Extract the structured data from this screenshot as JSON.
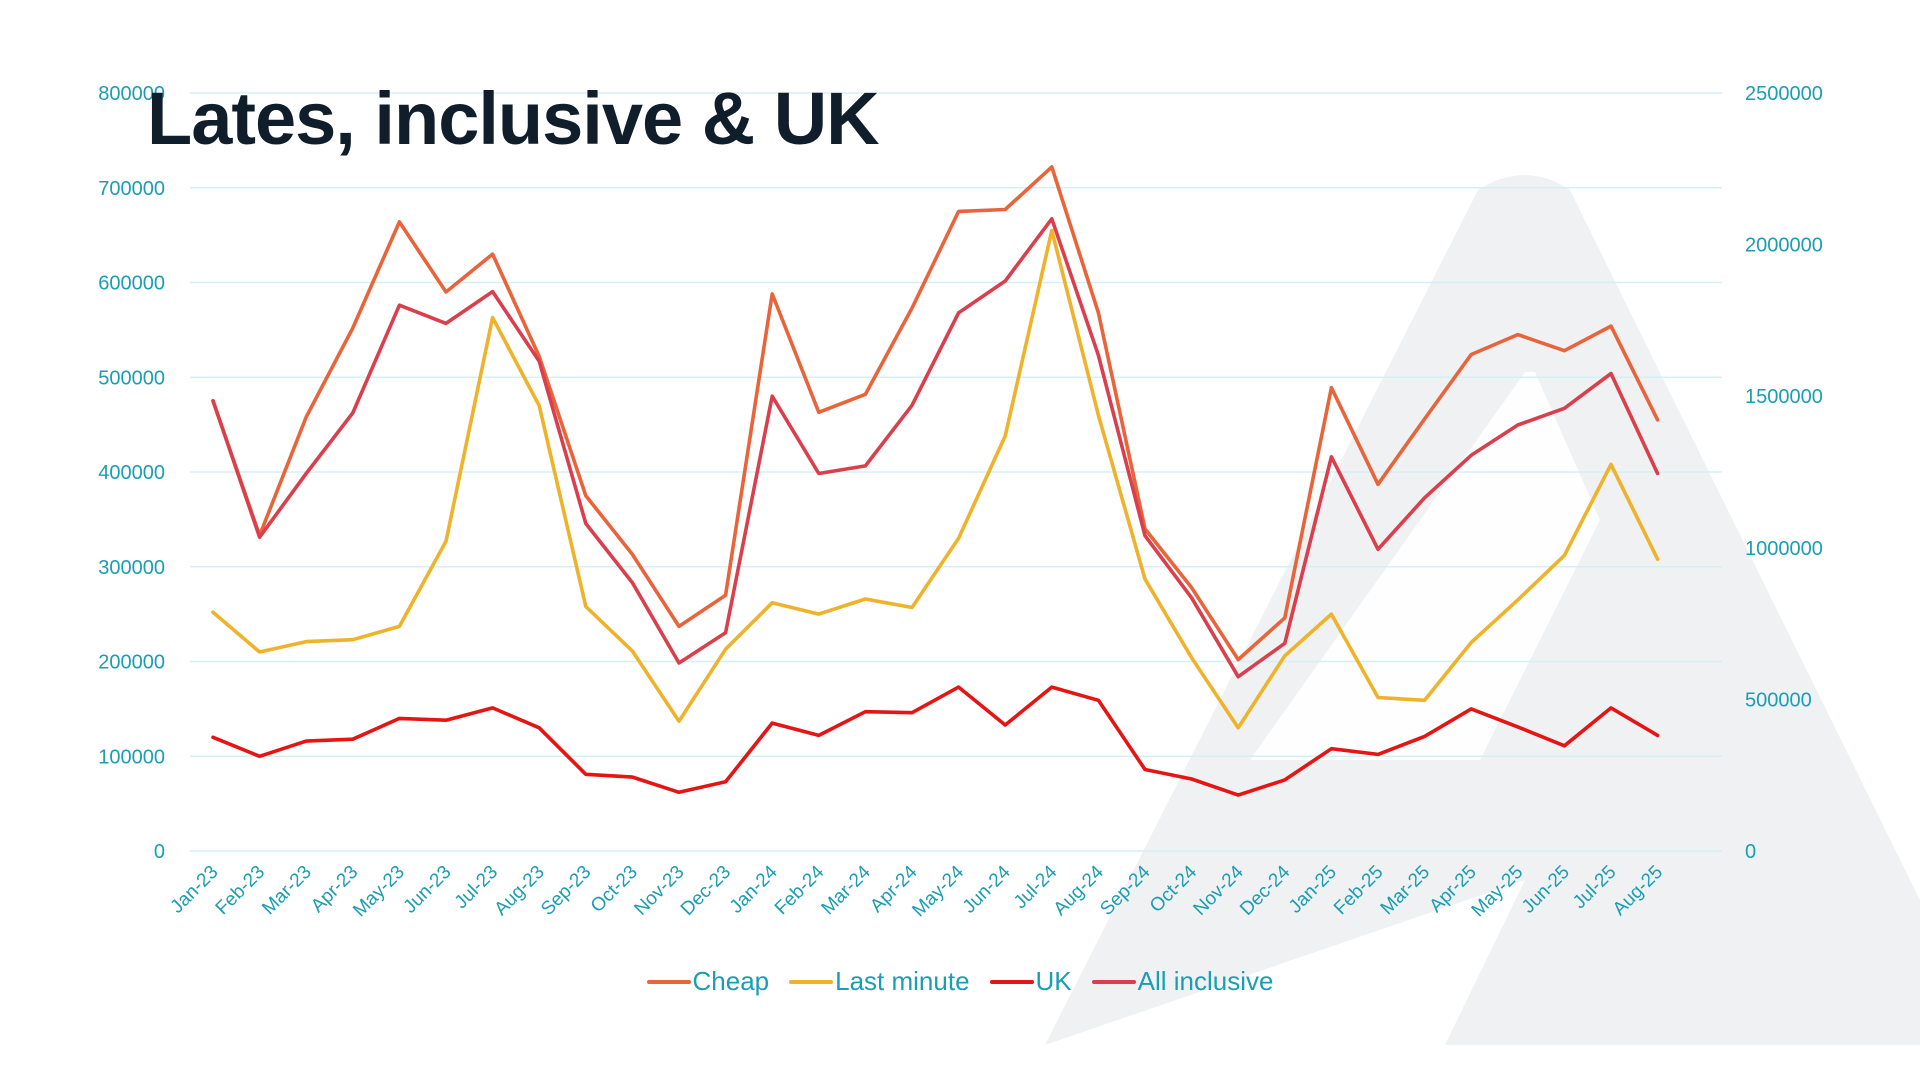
{
  "slide": {
    "title": "Lates, inclusive & UK"
  },
  "colors": {
    "axis_text": "#1b9db3",
    "title": "#0f1e2a",
    "grid": "#d3f0f5",
    "watermark": "#f0f1f2"
  },
  "chart_data": {
    "type": "line",
    "title": "Lates, inclusive & UK",
    "xlabel": "",
    "ylabel": "",
    "grid": true,
    "legend_position": "bottom",
    "categories": [
      "Jan-23",
      "Feb-23",
      "Mar-23",
      "Apr-23",
      "May-23",
      "Jun-23",
      "Jul-23",
      "Aug-23",
      "Sep-23",
      "Oct-23",
      "Nov-23",
      "Dec-23",
      "Jan-24",
      "Feb-24",
      "Mar-24",
      "Apr-24",
      "May-24",
      "Jun-24",
      "Jul-24",
      "Aug-24",
      "Sep-24",
      "Oct-24",
      "Nov-24",
      "Dec-24",
      "Jan-25",
      "Feb-25",
      "Mar-25",
      "Apr-25",
      "May-25",
      "Jun-25",
      "Jul-25",
      "Aug-25"
    ],
    "y_left": {
      "min": 0,
      "max": 800000,
      "ticks": [
        "0",
        "100000",
        "200000",
        "300000",
        "400000",
        "500000",
        "600000",
        "700000",
        "800000"
      ]
    },
    "y_right": {
      "min": 0,
      "max": 2500000,
      "ticks": [
        "0",
        "500000",
        "1000000",
        "1500000",
        "2000000",
        "2500000"
      ]
    },
    "series": [
      {
        "name": "Cheap",
        "color": "#e8643a",
        "axis": "left",
        "values": [
          475000,
          333000,
          458000,
          552000,
          664000,
          590000,
          630000,
          522000,
          375000,
          313000,
          237000,
          270000,
          588000,
          463000,
          482000,
          573000,
          675000,
          677000,
          722000,
          568000,
          340000,
          278000,
          202000,
          246000,
          489000,
          387000,
          456000,
          524000,
          545000,
          528000,
          554000,
          455000
        ]
      },
      {
        "name": "Last minute",
        "color": "#efb22b",
        "axis": "left",
        "values": [
          252000,
          210000,
          221000,
          223000,
          237000,
          327000,
          563000,
          470000,
          258000,
          211000,
          137000,
          213000,
          262000,
          250000,
          266000,
          257000,
          330000,
          438000,
          655000,
          460000,
          287000,
          204000,
          130000,
          206000,
          250000,
          162000,
          159000,
          220000,
          265000,
          312000,
          408000,
          308000
        ]
      },
      {
        "name": "UK",
        "color": "#e41514",
        "axis": "left",
        "values": [
          120000,
          100000,
          116000,
          118000,
          140000,
          138000,
          151000,
          130000,
          81000,
          78000,
          62000,
          73000,
          135000,
          122000,
          147000,
          146000,
          173000,
          133000,
          173000,
          159000,
          86000,
          76000,
          59000,
          75000,
          108000,
          102000,
          121000,
          150000,
          131000,
          111000,
          151000,
          122000
        ]
      },
      {
        "name": "All inclusive",
        "color": "#d93f4c",
        "axis": "right",
        "values": [
          1485000,
          1035000,
          1245000,
          1445000,
          1800000,
          1740000,
          1845000,
          1615000,
          1080000,
          885000,
          620000,
          720000,
          1500000,
          1245000,
          1270000,
          1470000,
          1775000,
          1880000,
          2085000,
          1635000,
          1040000,
          835000,
          575000,
          685000,
          1300000,
          995000,
          1165000,
          1305000,
          1405000,
          1460000,
          1575000,
          1245000
        ]
      }
    ]
  }
}
